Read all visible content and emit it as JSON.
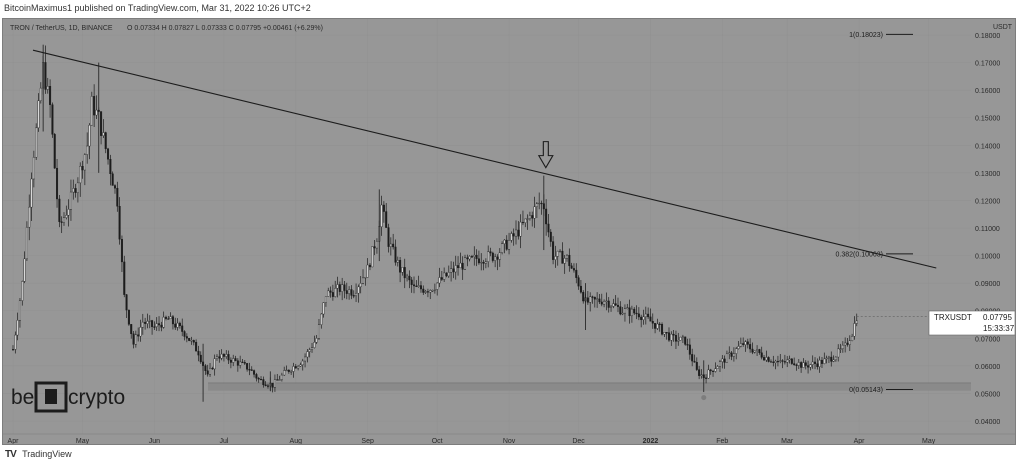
{
  "publish_line": "BitcoinMaximus1 published on TradingView.com, Mar 31, 2022 10:26 UTC+2",
  "footer_text": "TradingView",
  "footer_logo": "TV",
  "watermark": "beincrypto",
  "colors": {
    "chart_bg": "#979797",
    "candle": "#1c1c1c",
    "support_band": "#8a8a8a",
    "price_label_bg": "#ffffff"
  },
  "chart_data": {
    "type": "candlestick",
    "header": {
      "symbol": "TRON / TetherUS, 1D, BINANCE",
      "ohlc": "O 0.07334  H 0.07827  L 0.07333  C 0.07795  +0.00461 (+6.29%)"
    },
    "y_axis": {
      "unit": "USDT",
      "ticks": [
        "0.18000",
        "0.17000",
        "0.16000",
        "0.15000",
        "0.14000",
        "0.13000",
        "0.12000",
        "0.11000",
        "0.10000",
        "0.09000",
        "0.08000",
        "0.07000",
        "0.06000",
        "0.05000",
        "0.04000"
      ],
      "range": [
        0.04,
        0.18
      ]
    },
    "x_axis": {
      "ticks": [
        "Apr",
        "May",
        "Jun",
        "Jul",
        "Aug",
        "Sep",
        "Oct",
        "Nov",
        "Dec",
        "2022",
        "Feb",
        "Mar",
        "Apr",
        "May"
      ]
    },
    "current_price": {
      "symbol": "TRXUSDT",
      "price": "0.07795",
      "countdown": "15:33:37"
    },
    "fib_levels": [
      {
        "label": "1(0.18023)",
        "value": 0.18023
      },
      {
        "label": "0.382(0.10063)",
        "value": 0.10063
      },
      {
        "label": "0(0.05143)",
        "value": 0.05143
      }
    ],
    "trendline": {
      "start": [
        "2021-04-01",
        0.1745
      ],
      "end": [
        "2022-04-30",
        0.0955
      ]
    },
    "support_zone": [
      0.051,
      0.0538
    ],
    "arrow_annotation": {
      "date": "2021-11-16",
      "points_to": 0.129
    },
    "price_path": [
      [
        "2021-04-01",
        0.066
      ],
      [
        "2021-04-05",
        0.09
      ],
      [
        "2021-04-09",
        0.13
      ],
      [
        "2021-04-14",
        0.168
      ],
      [
        "2021-04-17",
        0.154
      ],
      [
        "2021-04-21",
        0.11
      ],
      [
        "2021-04-25",
        0.118
      ],
      [
        "2021-04-29",
        0.128
      ],
      [
        "2021-05-03",
        0.14
      ],
      [
        "2021-05-05",
        0.155
      ],
      [
        "2021-05-08",
        0.15
      ],
      [
        "2021-05-12",
        0.135
      ],
      [
        "2021-05-16",
        0.12
      ],
      [
        "2021-05-19",
        0.085
      ],
      [
        "2021-05-23",
        0.068
      ],
      [
        "2021-05-27",
        0.076
      ],
      [
        "2021-06-01",
        0.074
      ],
      [
        "2021-06-07",
        0.077
      ],
      [
        "2021-06-14",
        0.072
      ],
      [
        "2021-06-20",
        0.065
      ],
      [
        "2021-06-24",
        0.056
      ],
      [
        "2021-06-28",
        0.064
      ],
      [
        "2021-07-05",
        0.062
      ],
      [
        "2021-07-12",
        0.059
      ],
      [
        "2021-07-16",
        0.055
      ],
      [
        "2021-07-22",
        0.053
      ],
      [
        "2021-07-28",
        0.058
      ],
      [
        "2021-08-04",
        0.062
      ],
      [
        "2021-08-10",
        0.07
      ],
      [
        "2021-08-14",
        0.086
      ],
      [
        "2021-08-20",
        0.088
      ],
      [
        "2021-08-26",
        0.087
      ],
      [
        "2021-09-01",
        0.095
      ],
      [
        "2021-09-05",
        0.107
      ],
      [
        "2021-09-07",
        0.118
      ],
      [
        "2021-09-10",
        0.105
      ],
      [
        "2021-09-15",
        0.095
      ],
      [
        "2021-09-21",
        0.088
      ],
      [
        "2021-09-28",
        0.088
      ],
      [
        "2021-10-04",
        0.092
      ],
      [
        "2021-10-10",
        0.096
      ],
      [
        "2021-10-18",
        0.099
      ],
      [
        "2021-10-26",
        0.1
      ],
      [
        "2021-11-02",
        0.106
      ],
      [
        "2021-11-09",
        0.113
      ],
      [
        "2021-11-14",
        0.119
      ],
      [
        "2021-11-16",
        0.118
      ],
      [
        "2021-11-20",
        0.1
      ],
      [
        "2021-11-26",
        0.099
      ],
      [
        "2021-12-01",
        0.09
      ],
      [
        "2021-12-04",
        0.083
      ],
      [
        "2021-12-12",
        0.084
      ],
      [
        "2021-12-20",
        0.08
      ],
      [
        "2021-12-27",
        0.079
      ],
      [
        "2022-01-03",
        0.075
      ],
      [
        "2022-01-10",
        0.07
      ],
      [
        "2022-01-16",
        0.069
      ],
      [
        "2022-01-21",
        0.058
      ],
      [
        "2022-01-24",
        0.056
      ],
      [
        "2022-01-28",
        0.059
      ],
      [
        "2022-02-03",
        0.063
      ],
      [
        "2022-02-10",
        0.068
      ],
      [
        "2022-02-14",
        0.066
      ],
      [
        "2022-02-20",
        0.063
      ],
      [
        "2022-02-26",
        0.061
      ],
      [
        "2022-03-03",
        0.062
      ],
      [
        "2022-03-08",
        0.06
      ],
      [
        "2022-03-14",
        0.061
      ],
      [
        "2022-03-18",
        0.062
      ],
      [
        "2022-03-22",
        0.064
      ],
      [
        "2022-03-26",
        0.067
      ],
      [
        "2022-03-29",
        0.072
      ],
      [
        "2022-03-31",
        0.078
      ]
    ]
  }
}
